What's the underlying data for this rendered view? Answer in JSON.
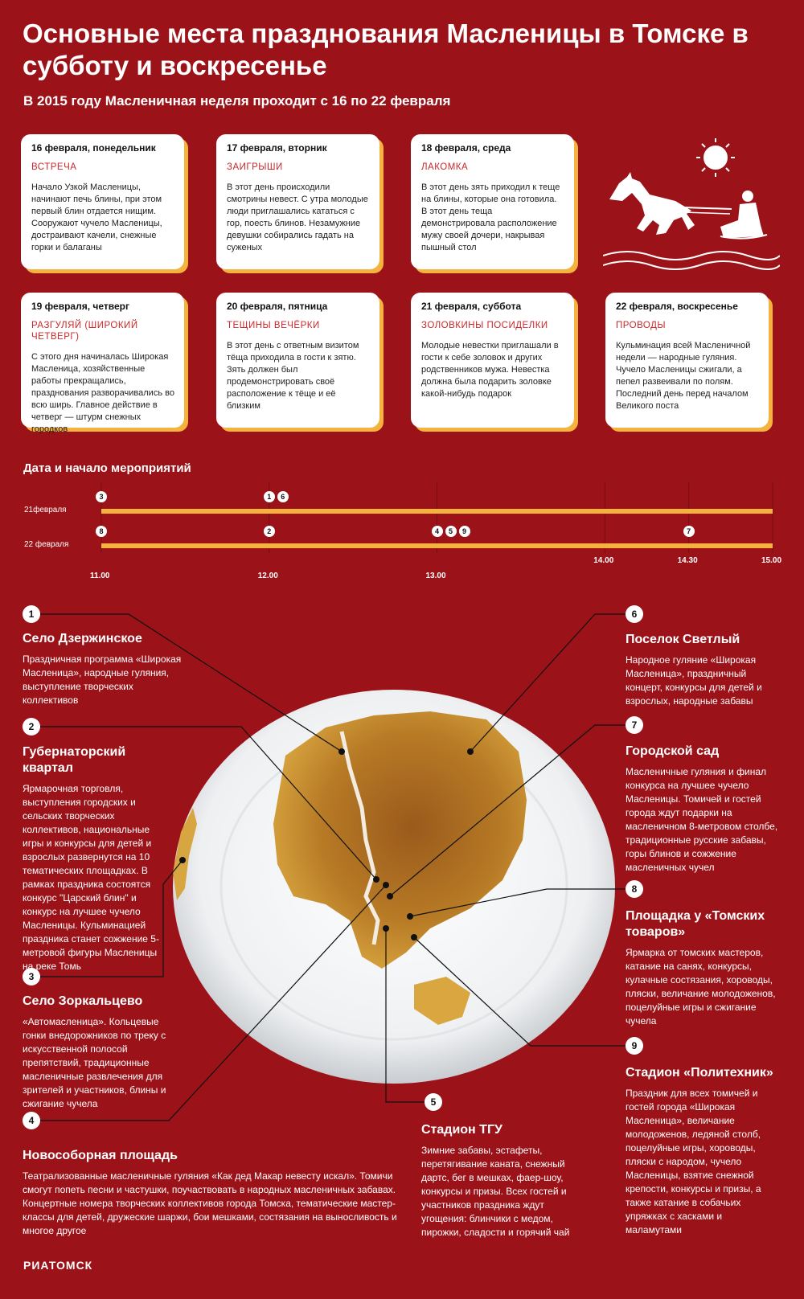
{
  "title": "Основные места празднования Масленицы в Томске в субботу и воскресенье",
  "subtitle": "В 2015 году Масленичная неделя проходит с 16 по 22 февраля",
  "days": [
    {
      "date": "16 февраля, понедельник",
      "name": "ВСТРЕЧА",
      "text": "Начало Узкой Масленицы, начинают печь блины, при этом первый блин отдается нищим. Сооружают чучело Масленицы, достраивают качели, снежные горки и балаганы"
    },
    {
      "date": "17 февраля, вторник",
      "name": "ЗАИГРЫШИ",
      "text": "В этот день происходили смотрины невест. С утра молодые люди приглашались кататься с гор, поесть блинов. Незамужние девушки собирались гадать на суженых"
    },
    {
      "date": "18 февраля, среда",
      "name": "ЛАКОМКА",
      "text": "В этот день зять приходил к теще на блины, которые она готовила. В этот день теща демонстрировала расположение мужу своей дочери, накрывая пышный стол"
    },
    {
      "date": "19 февраля, четверг",
      "name": "РАЗГУЛЯЙ (ШИРОКИЙ ЧЕТВЕРГ)",
      "text": "С этого дня начиналась Широкая Масленица, хозяйственные работы прекращались, празднования разворачивались во всю ширь. Главное действие в четверг — штурм снежных городков"
    },
    {
      "date": "20 февраля, пятница",
      "name": "ТЕЩИНЫ ВЕЧЁРКИ",
      "text": "В этот день с ответным визитом тёща приходила в гости к зятю. Зять должен был продемонстрировать своё расположение к тёще и её близким"
    },
    {
      "date": "21 февраля, суббота",
      "name": "ЗОЛОВКИНЫ ПОСИДЕЛКИ",
      "text": "Молодые невестки приглашали в гости к себе золовок и других родственников мужа. Невестка должна была подарить золовке какой-нибудь подарок"
    },
    {
      "date": "22 февраля, воскресенье",
      "name": "ПРОВОДЫ",
      "text": "Кульминация всей Масленичной недели — народные гуляния. Чучело Масленицы сжигали, а пепел развеивали по полям. Последний день перед началом Великого поста"
    }
  ],
  "timeline": {
    "title": "Дата и начало мероприятий",
    "rows": [
      {
        "label": "21февраля",
        "events": [
          {
            "time": 11.0,
            "ids": [
              "3"
            ]
          },
          {
            "time": 12.0,
            "ids": [
              "1",
              "6"
            ]
          }
        ]
      },
      {
        "label": "22 февраля",
        "events": [
          {
            "time": 11.0,
            "ids": [
              "8"
            ]
          },
          {
            "time": 12.0,
            "ids": [
              "2"
            ]
          },
          {
            "time": 13.0,
            "ids": [
              "4",
              "5",
              "9"
            ]
          },
          {
            "time": 14.5,
            "ids": [
              "7"
            ]
          }
        ]
      }
    ],
    "ticks": [
      {
        "v": 11.0,
        "label": "11.00"
      },
      {
        "v": 12.0,
        "label": "12.00"
      },
      {
        "v": 13.0,
        "label": "13.00"
      },
      {
        "v": 14.0,
        "label": "14.00"
      },
      {
        "v": 14.5,
        "label": "14.30"
      },
      {
        "v": 15.0,
        "label": "15.00"
      }
    ]
  },
  "locations": [
    {
      "id": "1",
      "name": "Село Дзержинское",
      "text": "Праздничная программа «Широкая Масленица», народные гуляния, выступление творческих коллективов"
    },
    {
      "id": "2",
      "name": "Губернаторский квартал",
      "text": "Ярмарочная торговля, выступления городских и сельских творческих коллективов, национальные игры и конкурсы для детей и взрослых развернутся на 10 тематических площадках. В рамках праздника состоятся конкурс \"Царский блин\" и конкурс на лучшее чучело Масленицы. Кульминацией праздника станет сожжение 5-метровой фигуры Масленицы на реке Томь"
    },
    {
      "id": "3",
      "name": "Село Зоркальцево",
      "text": "«Автомасленица». Кольцевые гонки внедорожников по треку с искусственной полосой препятствий, традиционные масленичные развлечения для зрителей и участников, блины и сжигание чучела"
    },
    {
      "id": "4",
      "name": "Новособорная площадь",
      "text": "Театрализованные масленичные гуляния «Как дед Макар невесту искал». Томичи смогут попеть песни и частушки, поучаствовать в народных масленичных забавах. Концертные номера творческих коллективов города Томска, тематические мастер-классы для детей, дружеские шаржи, бои мешками, состязания на выносливость и многое другое"
    },
    {
      "id": "5",
      "name": "Стадион ТГУ",
      "text": "Зимние забавы, эстафеты, перетягивание каната, снежный дартс, бег в мешках, фаер-шоу, конкурсы и призы. Всех гостей и участников праздника ждут угощения: блинчики с медом, пирожки, сладости и горячий чай"
    },
    {
      "id": "6",
      "name": "Поселок Светлый",
      "text": "Народное гуляние «Широкая Масленица», праздничный концерт, конкурсы для детей и взрослых, народные забавы"
    },
    {
      "id": "7",
      "name": "Городской сад",
      "text": "Масленичные гуляния и финал конкурса на лучшее чучело Масленицы. Томичей и гостей города ждут подарки на масленичном 8-метровом столбе, традиционные русские забавы, горы блинов и сожжение масленичных чучел"
    },
    {
      "id": "8",
      "name": "Площадка у «Томских товаров»",
      "text": "Ярмарка от томских мастеров, катание на санях, конкурсы, кулачные состязания, хороводы, пляски, величание молодоженов, поцелуйные игры и сжигание чучела"
    },
    {
      "id": "9",
      "name": "Стадион «Политехник»",
      "text": "Праздник для всех томичей и гостей города «Широкая Масленица», величание молодоженов, ледяной столб, поцелуйные игры, хороводы, пляски с народом, чучело Масленицы, взятие снежной крепости, конкурсы и призы, а также катание в собачьих упряжках с хасками и маламутами"
    }
  ],
  "brand": "РИАТОМСК",
  "colors": {
    "background": "#9b1219",
    "accent": "#f5b23c",
    "card": "#ffffff",
    "day_name": "#c9282b"
  },
  "icons": [
    "sun-icon",
    "horse-sleigh-icon",
    "pancake-plate-image"
  ]
}
